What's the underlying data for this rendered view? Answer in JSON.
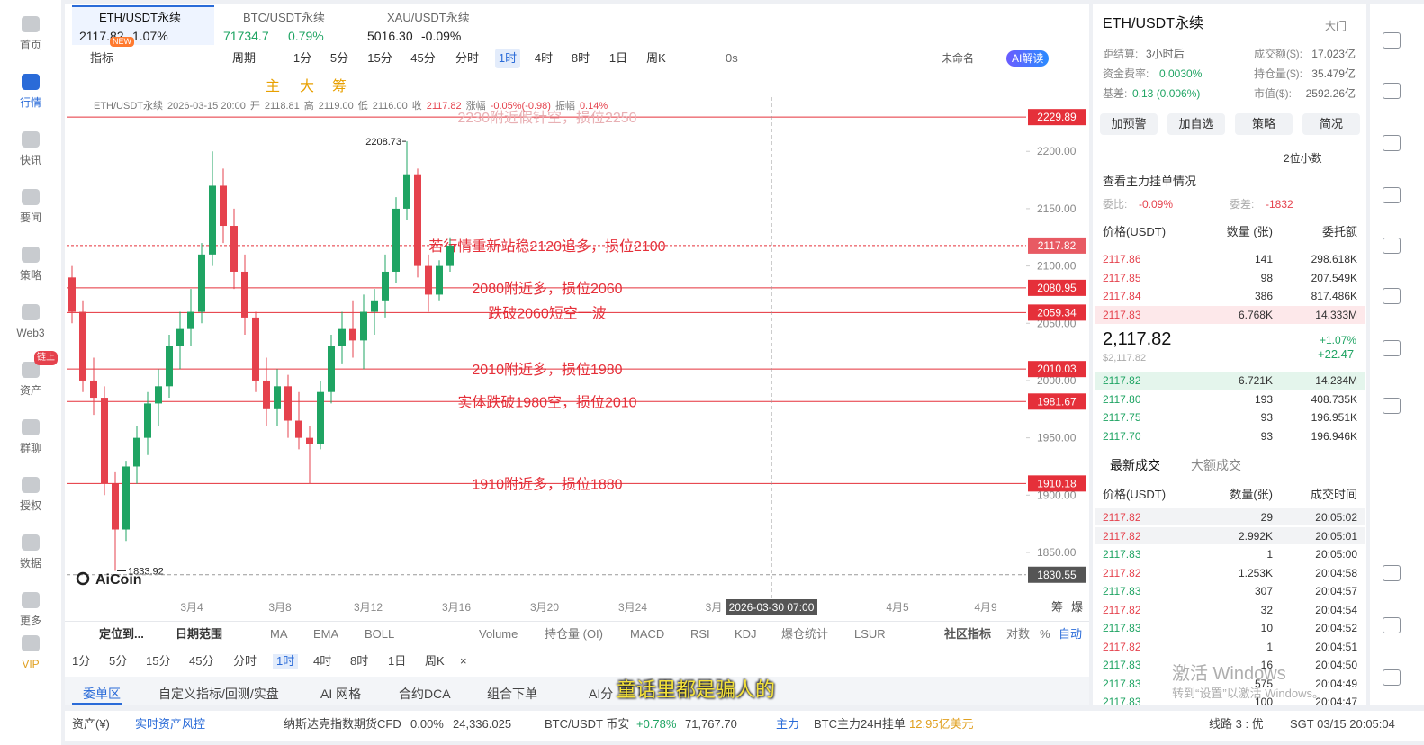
{
  "tabs": [
    {
      "name": "ETH/USDT永续",
      "price": "2117.82",
      "change": "1.07%"
    },
    {
      "name": "BTC/USDT永续",
      "price": "71734.7",
      "change": "0.79%"
    },
    {
      "name": "XAU/USDT永续",
      "price": "5016.30",
      "change": "-0.09%"
    }
  ],
  "new_badge": "NEW",
  "sidebar": [
    "首页",
    "行情",
    "快讯",
    "要闻",
    "策略",
    "Web3",
    "资产",
    "群聊",
    "授权",
    "数据",
    "更多",
    "VIP"
  ],
  "sidebar_active": 1,
  "sidebar_badge": "链上",
  "toolbar": {
    "indicator": "指标",
    "period": "周期",
    "timeframes": [
      "1分",
      "5分",
      "15分",
      "45分",
      "分时",
      "1时",
      "4时",
      "8时",
      "1日",
      "周K"
    ],
    "active_timeframe": 5,
    "countdown": "0s",
    "layout_name": "未命名",
    "ai": "AI解读",
    "main_tools": [
      "主",
      "大",
      "筹"
    ]
  },
  "info": [
    "ETH/USDT永续",
    "2026-03-15 20:00",
    "开",
    "2118.81",
    "高",
    "2119.00",
    "低",
    "2116.00",
    "收",
    "2117.82",
    "涨幅",
    "-0.05%(-0.98)",
    "振幅",
    "0.14%"
  ],
  "chart": {
    "ylim": [
      1817.8,
      2247.3
    ],
    "yticks": [
      {
        "value": 2200,
        "label": "2200.00"
      },
      {
        "value": 2150,
        "label": "2150.00"
      },
      {
        "value": 2100,
        "label": "2100.00"
      },
      {
        "value": 2050,
        "label": "2050.00"
      },
      {
        "value": 2000,
        "label": "2000.00"
      },
      {
        "value": 1950,
        "label": "1950.00"
      },
      {
        "value": 1900,
        "label": "1900.00"
      },
      {
        "value": 1850,
        "label": "1850.00"
      }
    ],
    "xlabels": [
      "3月4",
      "3月8",
      "3月12",
      "3月16",
      "3月20",
      "3月24",
      "3月",
      "4月5",
      "4月9"
    ],
    "up_color": "#1fa463",
    "down_color": "#e5424d",
    "candles": [
      [
        2090,
        2100,
        2050,
        2060
      ],
      [
        2060,
        2070,
        1990,
        2000
      ],
      [
        2000,
        2020,
        1970,
        1985
      ],
      [
        1985,
        1995,
        1900,
        1910
      ],
      [
        1910,
        1920,
        1833.92,
        1870
      ],
      [
        1870,
        1930,
        1860,
        1925
      ],
      [
        1925,
        1960,
        1910,
        1950
      ],
      [
        1950,
        1990,
        1935,
        1980
      ],
      [
        1980,
        2010,
        1960,
        1995
      ],
      [
        1995,
        2040,
        1985,
        2030
      ],
      [
        2030,
        2060,
        2010,
        2045
      ],
      [
        2045,
        2080,
        2030,
        2060
      ],
      [
        2060,
        2120,
        2050,
        2110
      ],
      [
        2110,
        2200,
        2100,
        2170
      ],
      [
        2170,
        2185,
        2120,
        2135
      ],
      [
        2135,
        2150,
        2080,
        2095
      ],
      [
        2095,
        2110,
        2040,
        2055
      ],
      [
        2055,
        2060,
        1990,
        2000
      ],
      [
        2000,
        2020,
        1960,
        1975
      ],
      [
        1975,
        2010,
        1960,
        1995
      ],
      [
        1995,
        2005,
        1950,
        1965
      ],
      [
        1965,
        1990,
        1940,
        1950
      ],
      [
        1950,
        1960,
        1910,
        1945
      ],
      [
        1945,
        2000,
        1940,
        1990
      ],
      [
        1990,
        2040,
        1980,
        2030
      ],
      [
        2030,
        2060,
        2015,
        2045
      ],
      [
        2045,
        2070,
        2020,
        2035
      ],
      [
        2035,
        2075,
        2010,
        2060
      ],
      [
        2060,
        2080,
        2040,
        2070
      ],
      [
        2070,
        2110,
        2055,
        2095
      ],
      [
        2095,
        2160,
        2085,
        2150
      ],
      [
        2150,
        2208.73,
        2140,
        2180
      ],
      [
        2180,
        2185,
        2090,
        2100
      ],
      [
        2100,
        2110,
        2060,
        2075
      ],
      [
        2075,
        2105,
        2070,
        2100
      ],
      [
        2100,
        2125,
        2095,
        2117.82
      ]
    ],
    "high": 2208.73,
    "low": 1833.92,
    "levels": [
      {
        "price": 2229.89,
        "note": "2230附近假针空，损位2250"
      },
      {
        "price": 2117.82,
        "note": "若行情重新站稳2120追多，损位2100"
      },
      {
        "price": 2080.95,
        "note": "2080附近多，损位2060"
      },
      {
        "price": 2059.34,
        "note": "跌破2060短空一波"
      },
      {
        "price": 2010.03,
        "note": "2010附近多，损位1980"
      },
      {
        "price": 1981.67,
        "note": "实体跌破1980空，损位2010"
      },
      {
        "price": 1910.18,
        "note": "1910附近多，损位1880"
      }
    ],
    "crosshair_price": 1830.55,
    "crosshair_time": "2026-03-30 07:00",
    "watermark": "AiCoin",
    "side_labels": [
      "筹",
      "爆"
    ]
  },
  "indicator_bar": {
    "locate": "定位到...",
    "date_range": "日期范围",
    "indicators": [
      "MA",
      "EMA",
      "BOLL",
      "Volume",
      "持仓量 (OI)",
      "MACD",
      "RSI",
      "KDJ",
      "爆仓统计",
      "LSUR"
    ],
    "community": "社区指标",
    "log": "对数",
    "percent": "%",
    "auto": "自动"
  },
  "bottom_timeframes": [
    "1分",
    "5分",
    "15分",
    "45分",
    "分时",
    "1时",
    "4时",
    "8时",
    "1日",
    "周K",
    "×"
  ],
  "bottom_tabs": [
    "委单区",
    "自定义指标/回测/实盘",
    "AI 网格",
    "合约DCA",
    "组合下单",
    "AI分"
  ],
  "subtitle": "童话里都是骗人的",
  "status_bar": [
    {
      "text": "资产(¥)"
    },
    {
      "text": "实时资产风控",
      "color": "#2a6bd8"
    },
    {
      "text": "纳斯达克指数期货CFD"
    },
    {
      "text": "0.00%"
    },
    {
      "text": "24,336.025"
    },
    {
      "text": "BTC/USDT 币安"
    },
    {
      "text": "+0.78%",
      "color": "#1fa463"
    },
    {
      "text": "71,767.70"
    },
    {
      "text": "主力",
      "color": "#2a6bd8"
    },
    {
      "text": "BTC主力24H挂单"
    },
    {
      "text": "12.95亿美元",
      "color": "#e0a020"
    },
    {
      "text": "线路 3 : 优"
    },
    {
      "text": "SGT 03/15 20:05:04"
    }
  ],
  "watermark": [
    "激活 Windows",
    "转到“设置”以激活 Windows。"
  ],
  "right_panel": {
    "title": "ETH/USDT永续",
    "gate": "大门",
    "stats": [
      [
        "距结算:",
        "3小时后"
      ],
      [
        "成交额($):",
        "17.023亿"
      ],
      [
        "资金费率:",
        "0.0030%"
      ],
      [
        "持仓量($):",
        "35.479亿"
      ],
      [
        "基差:",
        "0.13 (0.006%)"
      ],
      [
        "市值($):",
        "2592.26亿"
      ]
    ],
    "buttons": [
      "加预警",
      "加自选",
      "策略",
      "简况"
    ],
    "decimals": "2位小数",
    "depth_link": "查看主力挂单情况",
    "ratio": [
      "委比:",
      "-0.09%"
    ],
    "diff": [
      "委差:",
      "-1832"
    ],
    "book_header": [
      "价格(USDT)",
      "数量 (张)",
      "委托额"
    ],
    "asks": [
      [
        "2117.86",
        "141",
        "298.618K"
      ],
      [
        "2117.85",
        "98",
        "207.549K"
      ],
      [
        "2117.84",
        "386",
        "817.486K"
      ],
      [
        "2117.83",
        "6.768K",
        "14.333M"
      ]
    ],
    "last": "2,117.82",
    "last_usd": "$2,117.82",
    "change_pct": "+1.07%",
    "change_abs": "+22.47",
    "bids": [
      [
        "2117.82",
        "6.721K",
        "14.234M"
      ],
      [
        "2117.80",
        "193",
        "408.735K"
      ],
      [
        "2117.75",
        "93",
        "196.951K"
      ],
      [
        "2117.70",
        "93",
        "196.946K"
      ]
    ],
    "trade_tabs": [
      "最新成交",
      "大额成交"
    ],
    "trade_header": [
      "价格(USDT)",
      "数量(张)",
      "成交时间"
    ],
    "trades": [
      [
        "2117.82",
        "29",
        "20:05:02"
      ],
      [
        "2117.82",
        "2.992K",
        "20:05:01"
      ],
      [
        "2117.83",
        "1",
        "20:05:00"
      ],
      [
        "2117.82",
        "1.253K",
        "20:04:58"
      ],
      [
        "2117.83",
        "307",
        "20:04:57"
      ],
      [
        "2117.82",
        "32",
        "20:04:54"
      ],
      [
        "2117.83",
        "10",
        "20:04:52"
      ],
      [
        "2117.82",
        "1",
        "20:04:51"
      ],
      [
        "2117.83",
        "16",
        "20:04:50"
      ],
      [
        "2117.83",
        "575",
        "20:04:49"
      ],
      [
        "2117.83",
        "100",
        "20:04:47"
      ]
    ],
    "trade_colors": [
      "#e5424d",
      "#e5424d",
      "#1fa463",
      "#e5424d",
      "#1fa463",
      "#e5424d",
      "#1fa463",
      "#e5424d",
      "#1fa463",
      "#1fa463",
      "#1fa463"
    ]
  }
}
